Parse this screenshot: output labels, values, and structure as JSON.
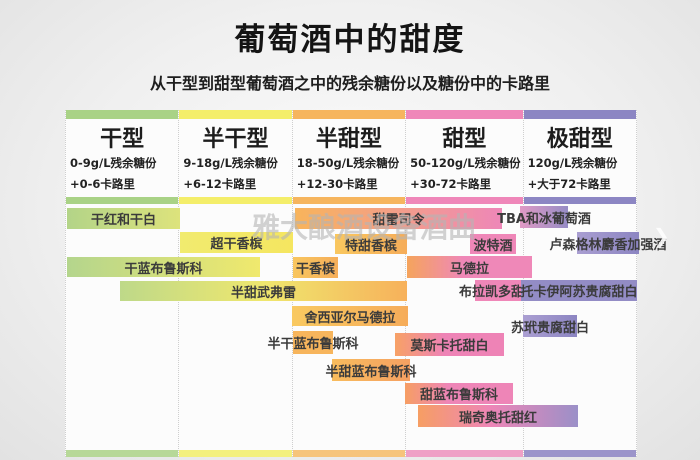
{
  "page": {
    "title": "葡萄酒中的甜度",
    "subtitle": "从干型到甜型葡萄酒之中的残余糖份以及糖份中的卡路里",
    "watermark": "雅大酿酒设备酒曲"
  },
  "icons": {
    "carousel_arrow": "❯"
  },
  "palette": {
    "dry_green": "#a9d286",
    "semi_dry_yellow": "#f4ee6a",
    "semi_sweet_orange": "#f6b55e",
    "sweet_pink": "#ef87b9",
    "very_sweet_purple": "#8c86c3",
    "bar_text": "#3b3b3b",
    "watermark_gray": "#b5b5b5"
  },
  "columns": [
    {
      "label": "干型",
      "sugar": "0-9g/L残余糖份",
      "calories": "+0-6卡路里",
      "color": "#a9d286"
    },
    {
      "label": "半干型",
      "sugar": "9-18g/L残余糖份",
      "calories": "+6-12卡路里",
      "color": "#f4ee6a"
    },
    {
      "label": "半甜型",
      "sugar": "18-50g/L残余糖份",
      "calories": "+12-30卡路里",
      "color": "#f6b55e"
    },
    {
      "label": "甜型",
      "sugar": "50-120g/L残余糖份",
      "calories": "+30-72卡路里",
      "color": "#ef87b9"
    },
    {
      "label": "极甜型",
      "sugar": "120g/L残余糖份",
      "calories": "+大于72卡路里",
      "color": "#8c86c3"
    }
  ],
  "chart_data": {
    "type": "table",
    "title": "葡萄酒中的甜度",
    "subtitle": "从干型到甜型葡萄酒之中的残余糖份以及糖份中的卡路里",
    "categories": [
      "干型",
      "半干型",
      "半甜型",
      "甜型",
      "极甜型"
    ],
    "category_residual_sugar_g_per_l": [
      "0-9",
      "9-18",
      "18-50",
      "50-120",
      ">120"
    ],
    "category_calories": [
      "+0-6",
      "+6-12",
      "+12-30",
      "+30-72",
      "+>72"
    ],
    "wines": [
      {
        "name": "干红和干白",
        "span": [
          "干型"
        ]
      },
      {
        "name": "甜雷司令",
        "span": [
          "半甜型",
          "甜型"
        ]
      },
      {
        "name": "TBA和冰葡萄酒",
        "span": [
          "极甜型"
        ]
      },
      {
        "name": "超干香槟",
        "span": [
          "半干型"
        ]
      },
      {
        "name": "特甜香槟",
        "span": [
          "半甜型"
        ]
      },
      {
        "name": "波特酒",
        "span": [
          "甜型"
        ]
      },
      {
        "name": "卢森格林麝香加强酒",
        "span": [
          "极甜型"
        ]
      },
      {
        "name": "干蓝布鲁斯科",
        "span": [
          "干型",
          "半干型"
        ]
      },
      {
        "name": "干香槟",
        "span": [
          "半甜型"
        ]
      },
      {
        "name": "马德拉",
        "span": [
          "甜型"
        ]
      },
      {
        "name": "半甜武弗雷",
        "span": [
          "干型",
          "半干型",
          "半甜型"
        ]
      },
      {
        "name": "布拉凯多甜红",
        "span": [
          "甜型"
        ]
      },
      {
        "name": "托卡伊阿苏贵腐甜白",
        "span": [
          "甜型",
          "极甜型"
        ]
      },
      {
        "name": "舍西亚尔马德拉",
        "span": [
          "半甜型"
        ]
      },
      {
        "name": "苏玳贵腐甜白",
        "span": [
          "极甜型"
        ]
      },
      {
        "name": "半干蓝布鲁斯科",
        "span": [
          "半甜型"
        ]
      },
      {
        "name": "莫斯卡托甜白",
        "span": [
          "甜型"
        ]
      },
      {
        "name": "半甜蓝布鲁斯科",
        "span": [
          "半甜型",
          "甜型"
        ]
      },
      {
        "name": "甜蓝布鲁斯科",
        "span": [
          "甜型"
        ]
      },
      {
        "name": "瑞奇奥托甜红",
        "span": [
          "甜型",
          "极甜型"
        ]
      }
    ]
  }
}
